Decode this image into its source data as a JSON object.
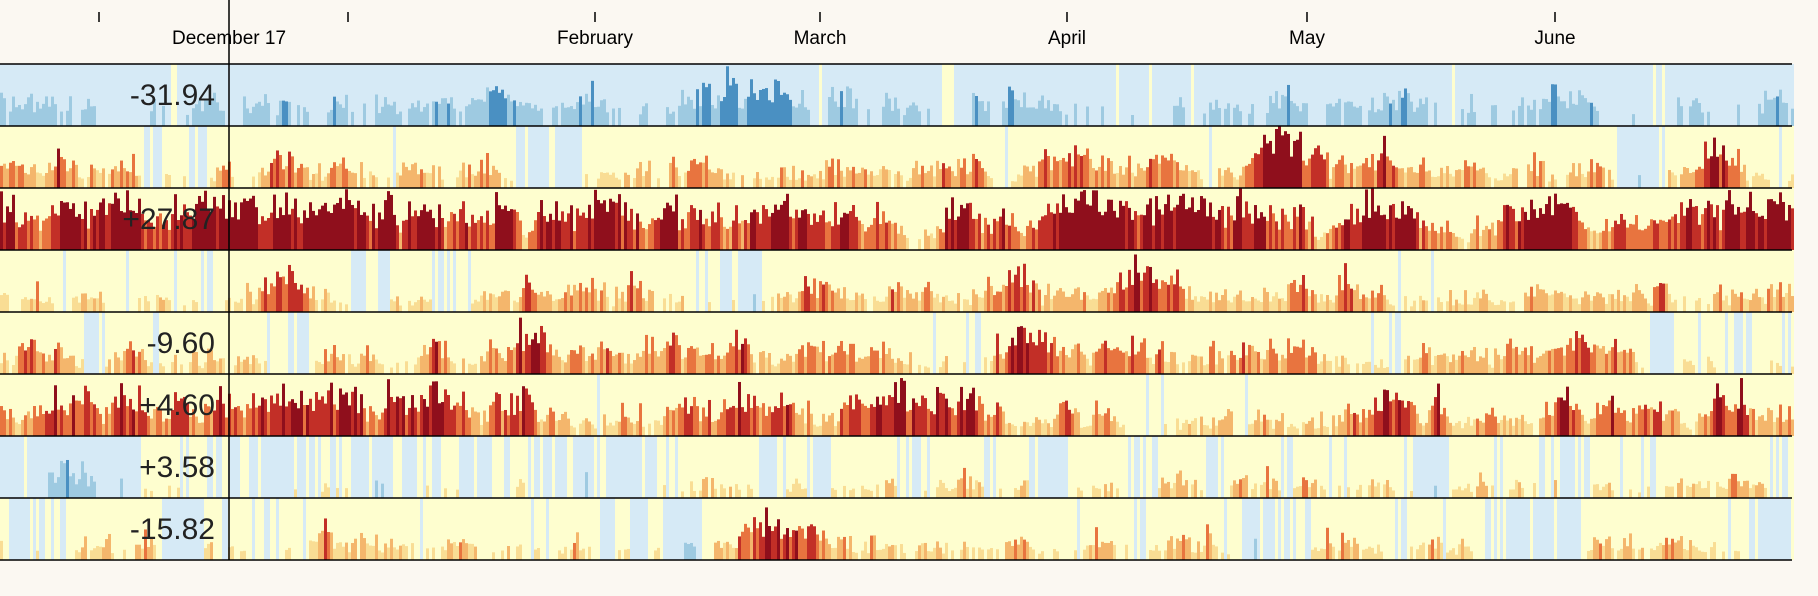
{
  "chart_data": {
    "type": "heatmap",
    "title": "",
    "subtitle": "",
    "xlabel": "",
    "ylabel": "",
    "x_axis": {
      "scale": "time",
      "tick_labels": [
        "February",
        "March",
        "April",
        "May",
        "June"
      ]
    },
    "cursor": {
      "date_label": "December 17"
    },
    "rows": [
      {
        "value_label": "-31.94",
        "tone": -0.45
      },
      {
        "value_label": "",
        "tone": 0.35
      },
      {
        "value_label": "+27.87",
        "tone": 0.75
      },
      {
        "value_label": "",
        "tone": 0.3
      },
      {
        "value_label": "-9.60",
        "tone": 0.35
      },
      {
        "value_label": "+4.60",
        "tone": 0.55
      },
      {
        "value_label": "+3.58",
        "tone": 0.05
      },
      {
        "value_label": "-15.82",
        "tone": 0.25
      }
    ],
    "color_scale": {
      "negative": [
        "#d6eaf6",
        "#9ecae1",
        "#4a90c2"
      ],
      "positive": [
        "#fefecf",
        "#f9dd94",
        "#f4b66c",
        "#e8743f",
        "#c22f27",
        "#8f0f1c"
      ],
      "neutral": "#fbf8f2"
    },
    "grid": false,
    "legend": "none"
  }
}
